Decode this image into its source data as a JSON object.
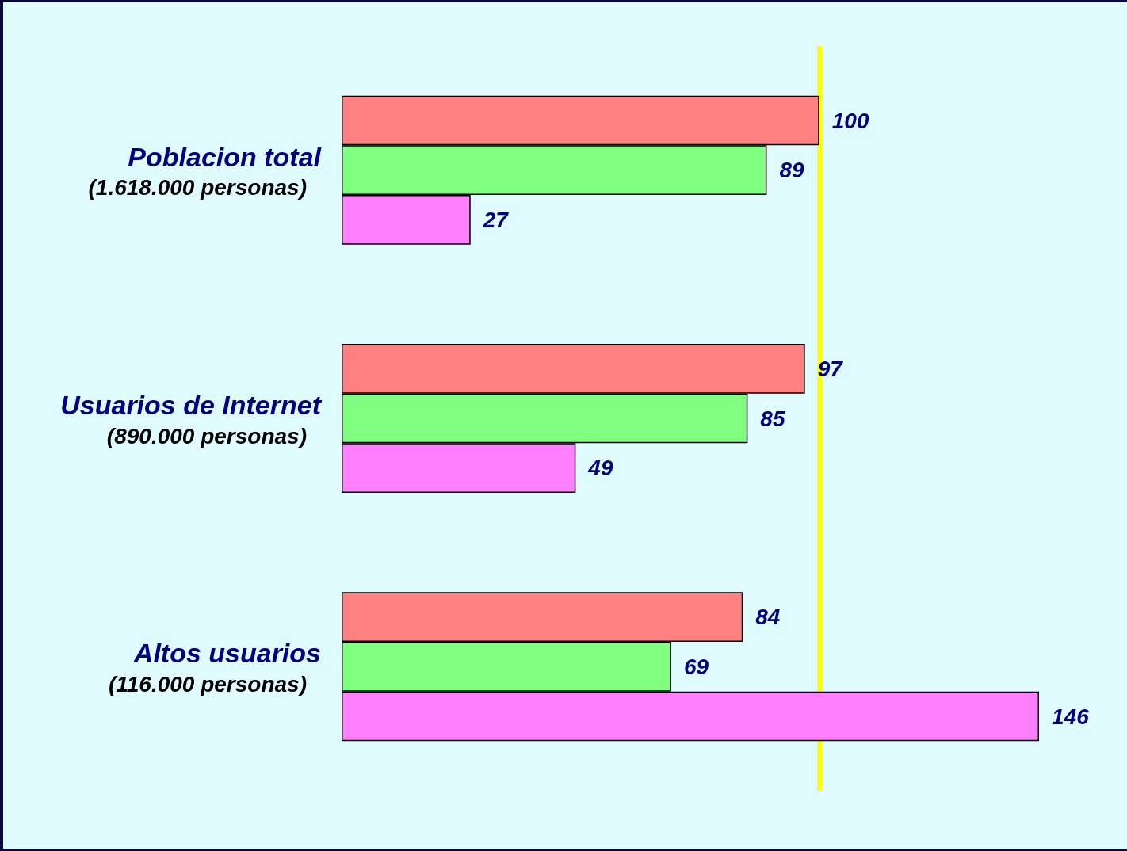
{
  "chart_data": {
    "type": "bar",
    "orientation": "horizontal",
    "categories": [
      "Poblacion total\n(1.618.000 personas)",
      "Usuarios de Internet\n(890.000 personas)",
      "Altos usuarios\n(116.000 personas)"
    ],
    "series": [
      {
        "color": "#ff8080",
        "values": [
          100,
          97,
          84
        ]
      },
      {
        "color": "#80ff80",
        "values": [
          89,
          85,
          69
        ]
      },
      {
        "color": "#ff80ff",
        "values": [
          27,
          49,
          146
        ]
      }
    ],
    "tick_labels": "y",
    "data_labels": true,
    "ref_lines": [
      {
        "axis": "x",
        "value": 100,
        "color": "#ffff00"
      }
    ]
  }
}
